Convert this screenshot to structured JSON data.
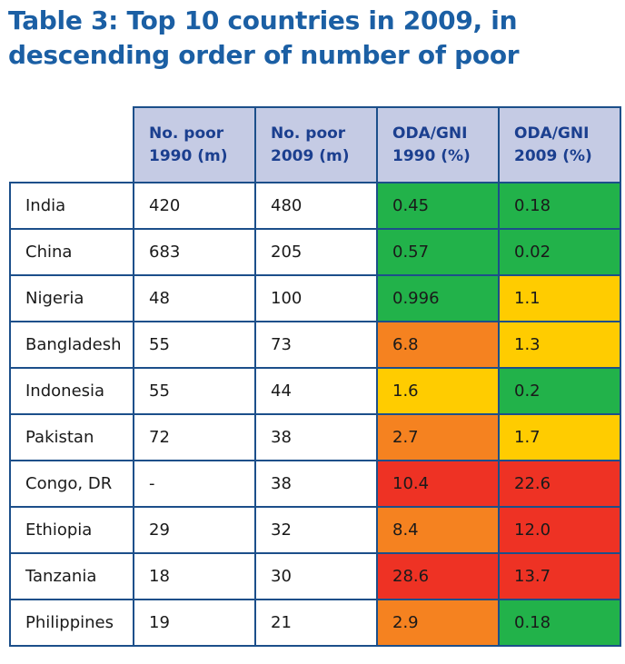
{
  "title": "Table 3: Top 10 countries in 2009, in descending order of number of poor",
  "colors": {
    "title": "#1b5fa4",
    "header_bg": "#c5cbe4",
    "border": "#1c4f8a",
    "green": "#22b24a",
    "yellow": "#ffcc00",
    "orange": "#f58220",
    "red": "#ee3224"
  },
  "table": {
    "headers": [
      "",
      "No. poor 1990 (m)",
      "No. poor 2009 (m)",
      "ODA/GNI 1990 (%)",
      "ODA/GNI 2009 (%)"
    ],
    "rows": [
      {
        "country": "India",
        "poor_1990": "420",
        "poor_2009": "480",
        "oda_1990": "0.45",
        "oda_1990_color": "green",
        "oda_2009": "0.18",
        "oda_2009_color": "green"
      },
      {
        "country": "China",
        "poor_1990": "683",
        "poor_2009": "205",
        "oda_1990": "0.57",
        "oda_1990_color": "green",
        "oda_2009": "0.02",
        "oda_2009_color": "green"
      },
      {
        "country": "Nigeria",
        "poor_1990": "48",
        "poor_2009": "100",
        "oda_1990": "0.996",
        "oda_1990_color": "green",
        "oda_2009": "1.1",
        "oda_2009_color": "yellow"
      },
      {
        "country": "Bangladesh",
        "poor_1990": "55",
        "poor_2009": "73",
        "oda_1990": "6.8",
        "oda_1990_color": "orange",
        "oda_2009": "1.3",
        "oda_2009_color": "yellow"
      },
      {
        "country": "Indonesia",
        "poor_1990": "55",
        "poor_2009": "44",
        "oda_1990": "1.6",
        "oda_1990_color": "yellow",
        "oda_2009": "0.2",
        "oda_2009_color": "green"
      },
      {
        "country": "Pakistan",
        "poor_1990": "72",
        "poor_2009": "38",
        "oda_1990": "2.7",
        "oda_1990_color": "orange",
        "oda_2009": "1.7",
        "oda_2009_color": "yellow"
      },
      {
        "country": "Congo, DR",
        "poor_1990": "-",
        "poor_2009": "38",
        "oda_1990": "10.4",
        "oda_1990_color": "red",
        "oda_2009": "22.6",
        "oda_2009_color": "red"
      },
      {
        "country": "Ethiopia",
        "poor_1990": "29",
        "poor_2009": "32",
        "oda_1990": "8.4",
        "oda_1990_color": "orange",
        "oda_2009": "12.0",
        "oda_2009_color": "red"
      },
      {
        "country": "Tanzania",
        "poor_1990": "18",
        "poor_2009": "30",
        "oda_1990": "28.6",
        "oda_1990_color": "red",
        "oda_2009": "13.7",
        "oda_2009_color": "red"
      },
      {
        "country": "Philippines",
        "poor_1990": "19",
        "poor_2009": "21",
        "oda_1990": "2.9",
        "oda_1990_color": "orange",
        "oda_2009": "0.18",
        "oda_2009_color": "green"
      }
    ]
  }
}
